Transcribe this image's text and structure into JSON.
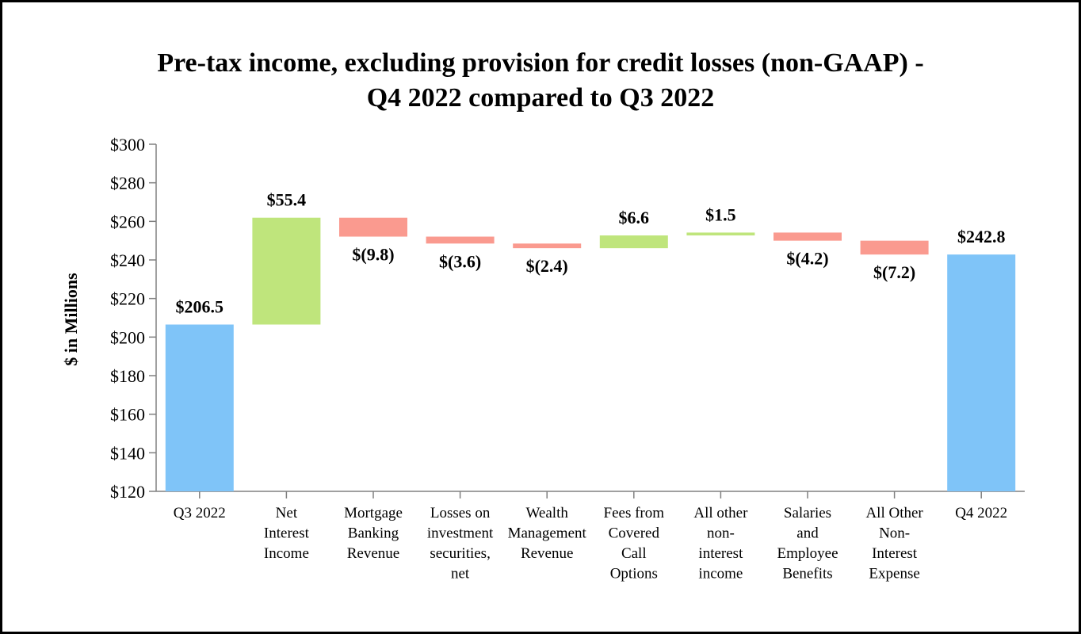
{
  "chart_data": {
    "type": "bar",
    "subtype": "waterfall",
    "title": [
      "Pre-tax income, excluding provision for credit losses (non-GAAP) -",
      "Q4 2022 compared to Q3 2022"
    ],
    "ylabel": "$ in Millions",
    "xlabel": "",
    "ylim": [
      120,
      300
    ],
    "yticks": [
      "$120",
      "$140",
      "$160",
      "$180",
      "$200",
      "$220",
      "$240",
      "$260",
      "$280",
      "$300"
    ],
    "ytick_values": [
      120,
      140,
      160,
      180,
      200,
      220,
      240,
      260,
      280,
      300
    ],
    "grid": false,
    "legend": "none",
    "categories": [
      [
        "Q3 2022"
      ],
      [
        "Net",
        "Interest",
        "Income"
      ],
      [
        "Mortgage",
        "Banking",
        "Revenue"
      ],
      [
        "Losses on",
        "investment",
        "securities,",
        "net"
      ],
      [
        "Wealth",
        "Management",
        "Revenue"
      ],
      [
        "Fees from",
        "Covered",
        "Call",
        "Options"
      ],
      [
        "All other",
        "non-",
        "interest",
        "income"
      ],
      [
        "Salaries",
        "and",
        "Employee",
        "Benefits"
      ],
      [
        "All Other",
        "Non-",
        "Interest",
        "Expense"
      ],
      [
        "Q4 2022"
      ]
    ],
    "values": [
      206.5,
      55.4,
      -9.8,
      -3.6,
      -2.4,
      6.6,
      1.5,
      -4.2,
      -7.2,
      242.8
    ],
    "kinds": [
      "total",
      "change",
      "change",
      "change",
      "change",
      "change",
      "change",
      "change",
      "change",
      "total"
    ],
    "data_labels": [
      "$206.5",
      "$55.4",
      "$(9.8)",
      "$(3.6)",
      "$(2.4)",
      "$6.6",
      "$1.5",
      "$(4.2)",
      "$(7.2)",
      "$242.8"
    ],
    "colors": {
      "total": "#7fc4f8",
      "increase": "#bfe57c",
      "decrease": "#fa9a8f",
      "axis": "#808080"
    }
  }
}
